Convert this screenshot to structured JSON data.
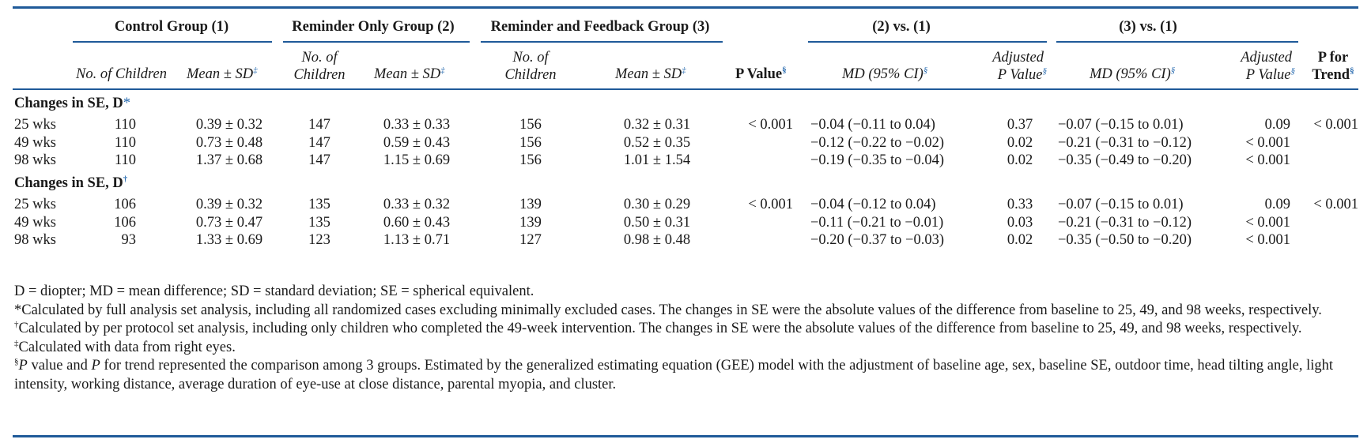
{
  "header": {
    "groups": [
      {
        "label": "Control Group (1)"
      },
      {
        "label": "Reminder Only Group (2)"
      },
      {
        "label": "Reminder and Feedback Group (3)"
      },
      {
        "label": "(2) vs. (1)"
      },
      {
        "label": "(3) vs. (1)"
      }
    ],
    "cols": {
      "no_children": "No. of Children",
      "mean_sd": "Mean ± SD",
      "no_of": "No. of",
      "children": "Children",
      "p_value": "P Value",
      "md_ci": "MD (95% CI)",
      "adjusted": "Adjusted",
      "p_value_lc": "P Value",
      "p_for": "P for",
      "trend": "Trend"
    },
    "marks": {
      "dagger": "†",
      "ddagger": "‡",
      "section": "§",
      "star": "*"
    }
  },
  "sections": [
    {
      "title": "Changes in SE, D",
      "mark": "*",
      "rows": [
        {
          "label": "25 wks",
          "n1": "110",
          "m1": "0.39 ± 0.32",
          "n2": "147",
          "m2": "0.33 ± 0.33",
          "n3": "156",
          "m3": "0.32 ± 0.31",
          "p": "< 0.001",
          "md21": "−0.04 (−0.11 to 0.04)",
          "adj21": "0.37",
          "md31": "−0.07 (−0.15 to 0.01)",
          "adj31": "0.09",
          "trend": "< 0.001"
        },
        {
          "label": "49 wks",
          "n1": "110",
          "m1": "0.73 ± 0.48",
          "n2": "147",
          "m2": "0.59 ± 0.43",
          "n3": "156",
          "m3": "0.52 ± 0.35",
          "p": "",
          "md21": "−0.12 (−0.22 to −0.02)",
          "adj21": "0.02",
          "md31": "−0.21 (−0.31 to −0.12)",
          "adj31": "< 0.001",
          "trend": ""
        },
        {
          "label": "98 wks",
          "n1": "110",
          "m1": "1.37 ± 0.68",
          "n2": "147",
          "m2": "1.15 ± 0.69",
          "n3": "156",
          "m3": "1.01 ± 1.54",
          "p": "",
          "md21": "−0.19 (−0.35 to −0.04)",
          "adj21": "0.02",
          "md31": "−0.35 (−0.49 to −0.20)",
          "adj31": "< 0.001",
          "trend": ""
        }
      ]
    },
    {
      "title": "Changes in SE, D",
      "mark": "†",
      "rows": [
        {
          "label": "25 wks",
          "n1": "106",
          "m1": "0.39 ± 0.32",
          "n2": "135",
          "m2": "0.33 ± 0.32",
          "n3": "139",
          "m3": "0.30 ± 0.29",
          "p": "< 0.001",
          "md21": "−0.04 (−0.12 to 0.04)",
          "adj21": "0.33",
          "md31": "−0.07 (−0.15 to 0.01)",
          "adj31": "0.09",
          "trend": "< 0.001"
        },
        {
          "label": "49 wks",
          "n1": "106",
          "m1": "0.73 ± 0.47",
          "n2": "135",
          "m2": "0.60 ± 0.43",
          "n3": "139",
          "m3": "0.50 ± 0.31",
          "p": "",
          "md21": "−0.11 (−0.21 to −0.01)",
          "adj21": "0.03",
          "md31": "−0.21 (−0.31 to −0.12)",
          "adj31": "< 0.001",
          "trend": ""
        },
        {
          "label": "98 wks",
          "n1": "93",
          "m1": "1.33 ± 0.69",
          "n2": "123",
          "m2": "1.13 ± 0.71",
          "n3": "127",
          "m3": "0.98 ± 0.48",
          "p": "",
          "md21": "−0.20 (−0.37 to −0.03)",
          "adj21": "0.02",
          "md31": "−0.35 (−0.50 to −0.20)",
          "adj31": "< 0.001",
          "trend": ""
        }
      ]
    }
  ],
  "notes": {
    "abbrev": "D = diopter; MD = mean difference; SD = standard deviation; SE = spherical equivalent.",
    "star": "Calculated by full analysis set analysis, including all randomized cases excluding minimally excluded cases. The changes in SE were the absolute values of the difference from baseline to 25, 49, and 98 weeks, respectively.",
    "dagger": "Calculated by per protocol set analysis, including only children who completed the 49-week intervention. The changes in SE were the absolute values of the difference from baseline to 25, 49, and 98 weeks, respectively.",
    "ddagger": "Calculated with data from right eyes.",
    "section_p": "P",
    "section_mid": " value and ",
    "section_p2": "P",
    "section_rest": " for trend represented the comparison among 3 groups. Estimated by the generalized estimating equation (GEE) model with the adjustment of baseline age, sex, baseline SE, outdoor time, head tilting angle, light intensity, working distance, average duration of eye-use at close distance, parental myopia, and cluster."
  },
  "colors": {
    "rule": "#1f5a99",
    "mark": "#2a6cb0",
    "text": "#1a1a1a"
  }
}
